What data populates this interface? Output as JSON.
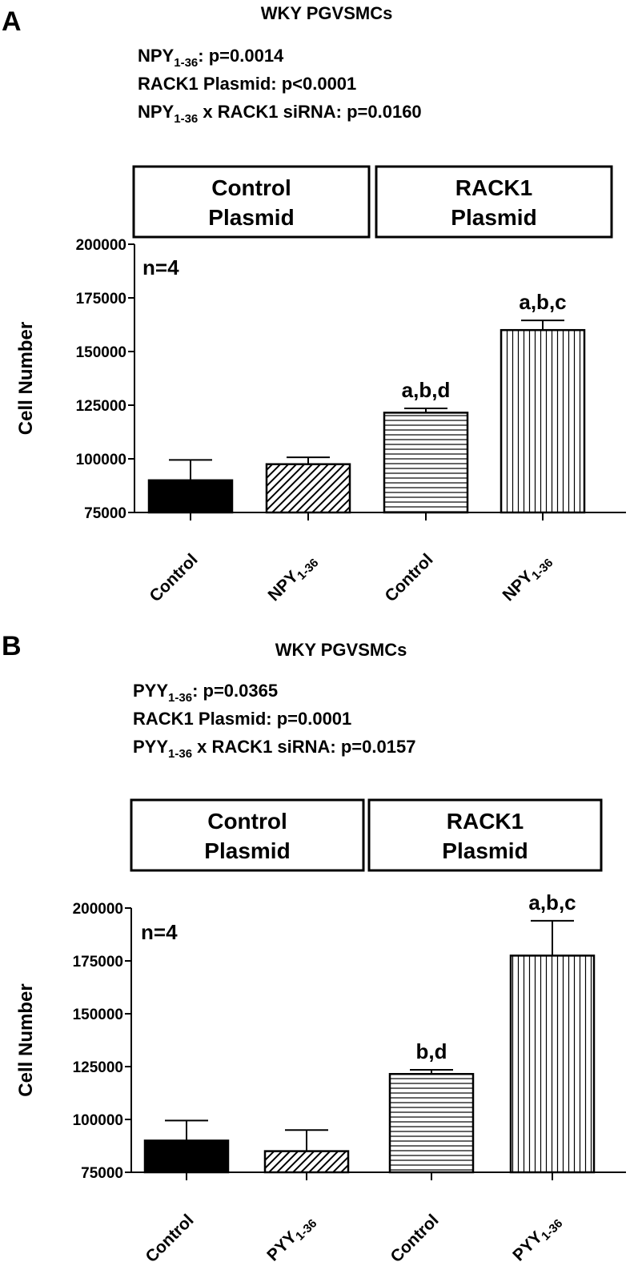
{
  "colors": {
    "ink": "#000000",
    "bg": "#ffffff"
  },
  "chart_data": [
    {
      "type": "bar",
      "panel_letter": "A",
      "title": "WKY PGVSMCs",
      "stats": [
        {
          "pre": "NPY",
          "sub": "1-36",
          "post": ": p=0.0014"
        },
        {
          "pre": "RACK1 Plasmid: p<0.0001",
          "sub": "",
          "post": ""
        },
        {
          "pre": "NPY",
          "sub": "1-36",
          "post": " x RACK1 siRNA: p=0.0160"
        }
      ],
      "groups": [
        {
          "line1": "Control",
          "line2": "Plasmid"
        },
        {
          "line1": "RACK1",
          "line2": "Plasmid"
        }
      ],
      "n_label": "n=4",
      "ylabel": "Cell Number",
      "ylim": [
        75000,
        200000
      ],
      "yticks": [
        75000,
        100000,
        125000,
        150000,
        175000,
        200000
      ],
      "categories": [
        {
          "main": "Control",
          "sub": ""
        },
        {
          "main": "NPY",
          "sub": "1-36"
        },
        {
          "main": "Control",
          "sub": ""
        },
        {
          "main": "NPY",
          "sub": "1-36"
        }
      ],
      "values": [
        90000,
        97500,
        121500,
        160000
      ],
      "errors": [
        9500,
        3200,
        2000,
        4500
      ],
      "patterns": [
        "solid",
        "diagonal",
        "horizontal",
        "vertical"
      ],
      "annotations": [
        "",
        "",
        "a,b,d",
        "a,b,c"
      ]
    },
    {
      "type": "bar",
      "panel_letter": "B",
      "title": "WKY PGVSMCs",
      "stats": [
        {
          "pre": "PYY",
          "sub": "1-36",
          "post": ": p=0.0365"
        },
        {
          "pre": "RACK1 Plasmid: p=0.0001",
          "sub": "",
          "post": ""
        },
        {
          "pre": "PYY",
          "sub": "1-36",
          "post": " x RACK1 siRNA: p=0.0157"
        }
      ],
      "groups": [
        {
          "line1": "Control",
          "line2": "Plasmid"
        },
        {
          "line1": "RACK1",
          "line2": "Plasmid"
        }
      ],
      "n_label": "n=4",
      "ylabel": "Cell Number",
      "ylim": [
        75000,
        200000
      ],
      "yticks": [
        75000,
        100000,
        125000,
        150000,
        175000,
        200000
      ],
      "categories": [
        {
          "main": "Control",
          "sub": ""
        },
        {
          "main": "PYY",
          "sub": "1-36"
        },
        {
          "main": "Control",
          "sub": ""
        },
        {
          "main": "PYY",
          "sub": "1-36"
        }
      ],
      "values": [
        90000,
        85000,
        121500,
        177500
      ],
      "errors": [
        9500,
        10000,
        2000,
        16500
      ],
      "patterns": [
        "solid",
        "diagonal",
        "horizontal",
        "vertical"
      ],
      "annotations": [
        "",
        "",
        "b,d",
        "a,b,c"
      ]
    }
  ]
}
